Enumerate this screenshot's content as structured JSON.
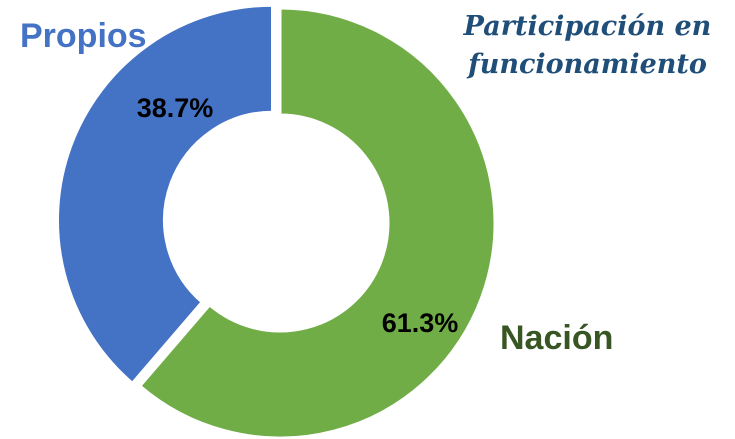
{
  "chart_data": {
    "type": "donut",
    "title": "Participación en funcionamiento",
    "categories": [
      "Propios",
      "Nación"
    ],
    "values": [
      38.7,
      61.3
    ],
    "value_labels": [
      "38.7%",
      "61.3%"
    ],
    "colors": [
      "#4472c4",
      "#70ad47"
    ],
    "label_colors": [
      "#4472c4",
      "#375623"
    ]
  }
}
